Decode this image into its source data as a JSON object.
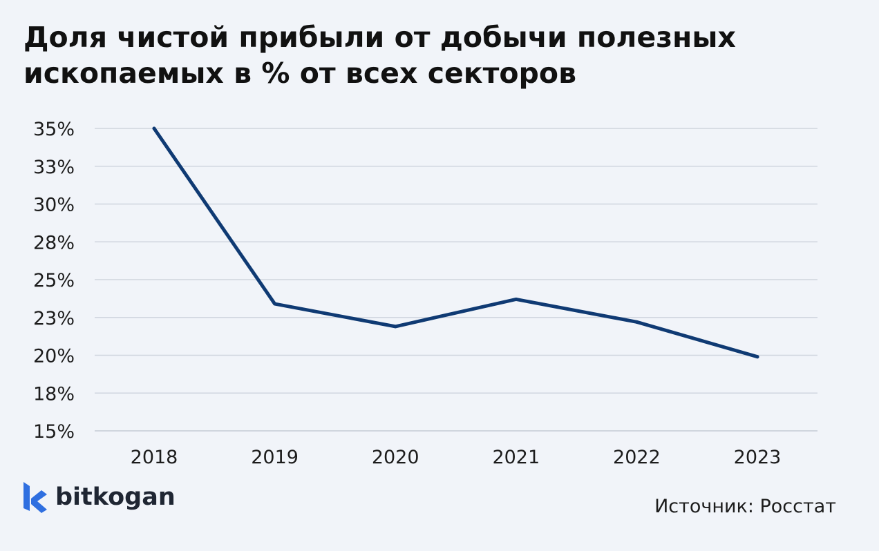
{
  "title": "Доля чистой прибыли от добычи полезных ископаемых в % от всех секторов",
  "source": "Источник: Росстат",
  "logo": {
    "text": "bitkogan",
    "icon": "bitkogan-logo-icon",
    "color": "#2f6fe0"
  },
  "colors": {
    "line": "#0f3a73",
    "grid": "#cfd5de",
    "background": "#f1f4f9"
  },
  "chart_data": {
    "type": "line",
    "title": "Доля чистой прибыли от добычи полезных ископаемых в % от всех секторов",
    "xlabel": "",
    "ylabel": "",
    "categories": [
      "2018",
      "2019",
      "2020",
      "2021",
      "2022",
      "2023"
    ],
    "series": [
      {
        "values": [
          35.0,
          23.4,
          21.9,
          23.7,
          22.2,
          19.9
        ]
      }
    ],
    "yticks": [
      {
        "value": 15.0,
        "label": "15%"
      },
      {
        "value": 17.5,
        "label": "18%"
      },
      {
        "value": 20.0,
        "label": "20%"
      },
      {
        "value": 22.5,
        "label": "23%"
      },
      {
        "value": 25.0,
        "label": "25%"
      },
      {
        "value": 27.5,
        "label": "28%"
      },
      {
        "value": 30.0,
        "label": "30%"
      },
      {
        "value": 32.5,
        "label": "33%"
      },
      {
        "value": 35.0,
        "label": "35%"
      }
    ],
    "ylim": [
      15,
      35
    ],
    "grid": true,
    "legend": "none"
  }
}
